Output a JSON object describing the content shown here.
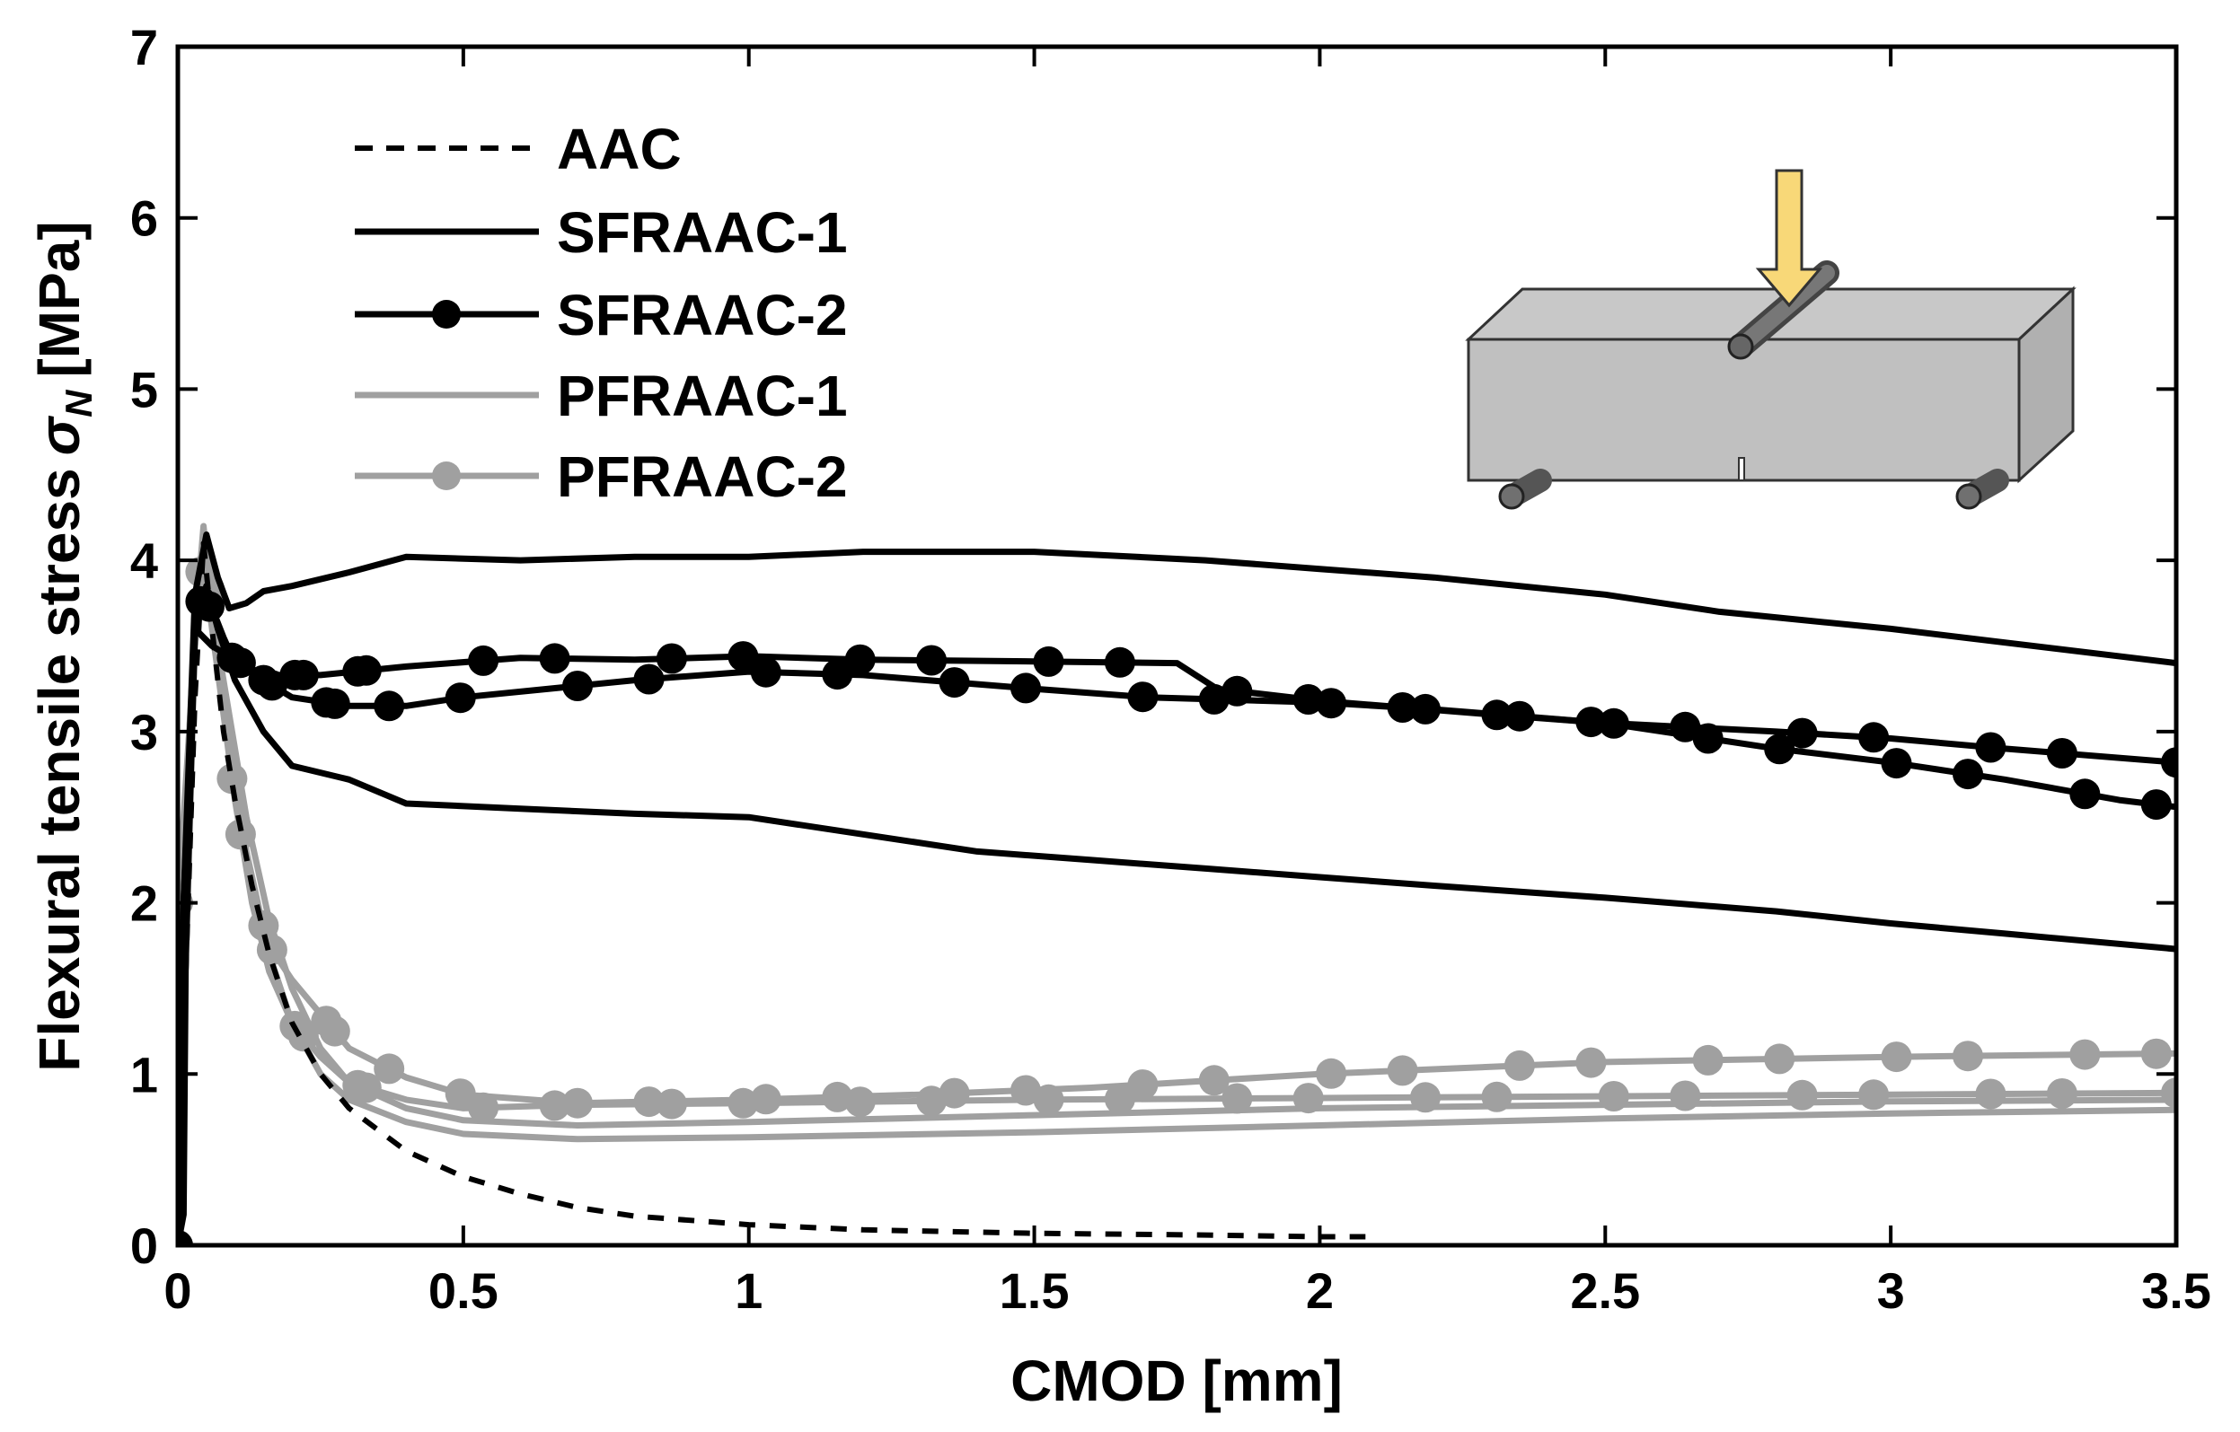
{
  "chart_data": {
    "type": "line",
    "title": "",
    "xlabel": "CMOD [mm]",
    "ylabel": "Flexural tensile stress",
    "ylabel_symbol": "σ",
    "ylabel_subscript": "N",
    "ylabel_unit": "[MPa]",
    "xlim": [
      0,
      3.5
    ],
    "ylim": [
      0,
      7
    ],
    "xticks": [
      "0",
      "0.5",
      "1",
      "1.5",
      "2",
      "2.5",
      "3",
      "3.5"
    ],
    "xtick_values": [
      0,
      0.5,
      1,
      1.5,
      2,
      2.5,
      3,
      3.5
    ],
    "yticks": [
      "0",
      "1",
      "2",
      "3",
      "4",
      "5",
      "6",
      "7"
    ],
    "ytick_values": [
      0,
      1,
      2,
      3,
      4,
      5,
      6,
      7
    ],
    "grid": false,
    "legend_position": "top-left",
    "colors": {
      "black": "#000000",
      "gray": "#a0a0a0",
      "beam": "#c0c0c0",
      "roller": "#707070",
      "arrow": "#f8d878"
    },
    "series": [
      {
        "name": "AAC",
        "color": "#000000",
        "style": "dashed",
        "marker": "none",
        "curves": [
          [
            [
              0,
              0
            ],
            [
              0.01,
              1.2
            ],
            [
              0.03,
              3.2
            ],
            [
              0.045,
              4.1
            ],
            [
              0.06,
              3.6
            ],
            [
              0.08,
              3.0
            ],
            [
              0.1,
              2.6
            ],
            [
              0.13,
              2.1
            ],
            [
              0.16,
              1.7
            ],
            [
              0.2,
              1.3
            ],
            [
              0.25,
              1.0
            ],
            [
              0.3,
              0.8
            ],
            [
              0.4,
              0.55
            ],
            [
              0.5,
              0.4
            ],
            [
              0.6,
              0.3
            ],
            [
              0.7,
              0.22
            ],
            [
              0.8,
              0.17
            ],
            [
              1.0,
              0.12
            ],
            [
              1.2,
              0.09
            ],
            [
              1.5,
              0.07
            ],
            [
              1.8,
              0.06
            ],
            [
              2.0,
              0.05
            ],
            [
              2.08,
              0.05
            ]
          ]
        ]
      },
      {
        "name": "SFRAAC-1",
        "color": "#000000",
        "style": "solid",
        "marker": "none",
        "curves": [
          [
            [
              0,
              0
            ],
            [
              0.01,
              2.0
            ],
            [
              0.03,
              3.8
            ],
            [
              0.05,
              4.15
            ],
            [
              0.07,
              3.9
            ],
            [
              0.09,
              3.72
            ],
            [
              0.12,
              3.75
            ],
            [
              0.15,
              3.82
            ],
            [
              0.2,
              3.85
            ],
            [
              0.3,
              3.93
            ],
            [
              0.4,
              4.02
            ],
            [
              0.6,
              4.0
            ],
            [
              0.8,
              4.02
            ],
            [
              1.0,
              4.02
            ],
            [
              1.2,
              4.05
            ],
            [
              1.5,
              4.05
            ],
            [
              1.8,
              4.0
            ],
            [
              2.0,
              3.95
            ],
            [
              2.2,
              3.9
            ],
            [
              2.5,
              3.8
            ],
            [
              2.7,
              3.7
            ],
            [
              3.0,
              3.6
            ],
            [
              3.2,
              3.52
            ],
            [
              3.5,
              3.4
            ]
          ],
          [
            [
              0,
              0
            ],
            [
              0.01,
              2.0
            ],
            [
              0.03,
              3.6
            ],
            [
              0.05,
              3.85
            ],
            [
              0.07,
              3.6
            ],
            [
              0.1,
              3.3
            ],
            [
              0.15,
              3.0
            ],
            [
              0.2,
              2.8
            ],
            [
              0.3,
              2.72
            ],
            [
              0.4,
              2.58
            ],
            [
              0.6,
              2.55
            ],
            [
              0.8,
              2.52
            ],
            [
              1.0,
              2.5
            ],
            [
              1.2,
              2.4
            ],
            [
              1.4,
              2.3
            ],
            [
              1.6,
              2.25
            ],
            [
              1.8,
              2.2
            ],
            [
              2.0,
              2.15
            ],
            [
              2.2,
              2.1
            ],
            [
              2.5,
              2.03
            ],
            [
              2.8,
              1.95
            ],
            [
              3.0,
              1.88
            ],
            [
              3.2,
              1.82
            ],
            [
              3.5,
              1.73
            ]
          ]
        ]
      },
      {
        "name": "SFRAAC-2",
        "color": "#000000",
        "style": "solid",
        "marker": "circle",
        "curves": [
          [
            [
              0,
              0
            ],
            [
              0.01,
              0.18
            ],
            [
              0.015,
              2.15
            ],
            [
              0.03,
              3.78
            ],
            [
              0.06,
              3.72
            ],
            [
              0.08,
              3.55
            ],
            [
              0.1,
              3.4
            ],
            [
              0.15,
              3.3
            ],
            [
              0.2,
              3.2
            ],
            [
              0.3,
              3.15
            ],
            [
              0.4,
              3.15
            ],
            [
              0.5,
              3.2
            ],
            [
              0.8,
              3.3
            ],
            [
              1.0,
              3.35
            ],
            [
              1.2,
              3.33
            ],
            [
              1.5,
              3.25
            ],
            [
              1.7,
              3.2
            ],
            [
              2.0,
              3.17
            ],
            [
              2.2,
              3.13
            ],
            [
              2.5,
              3.05
            ],
            [
              2.8,
              2.9
            ],
            [
              3.0,
              2.82
            ],
            [
              3.2,
              2.72
            ],
            [
              3.4,
              2.6
            ],
            [
              3.5,
              2.56
            ]
          ],
          [
            [
              0,
              0
            ],
            [
              0.03,
              3.6
            ],
            [
              0.06,
              3.5
            ],
            [
              0.1,
              3.42
            ],
            [
              0.15,
              3.33
            ],
            [
              0.25,
              3.33
            ],
            [
              0.4,
              3.38
            ],
            [
              0.6,
              3.43
            ],
            [
              0.8,
              3.42
            ],
            [
              1.0,
              3.44
            ],
            [
              1.2,
              3.42
            ],
            [
              1.5,
              3.41
            ],
            [
              1.75,
              3.4
            ],
            [
              1.82,
              3.25
            ],
            [
              2.0,
              3.18
            ],
            [
              2.3,
              3.1
            ],
            [
              2.5,
              3.05
            ],
            [
              2.8,
              3.0
            ],
            [
              3.0,
              2.96
            ],
            [
              3.2,
              2.9
            ],
            [
              3.5,
              2.82
            ]
          ]
        ]
      },
      {
        "name": "PFRAAC-1",
        "color": "#a0a0a0",
        "style": "solid",
        "marker": "none",
        "curves": [
          [
            [
              0,
              0
            ],
            [
              0.01,
              1.8
            ],
            [
              0.03,
              3.6
            ],
            [
              0.045,
              4.2
            ],
            [
              0.06,
              3.7
            ],
            [
              0.09,
              3.0
            ],
            [
              0.12,
              2.3
            ],
            [
              0.16,
              1.7
            ],
            [
              0.2,
              1.3
            ],
            [
              0.25,
              1.0
            ],
            [
              0.3,
              0.85
            ],
            [
              0.4,
              0.72
            ],
            [
              0.5,
              0.65
            ],
            [
              0.7,
              0.62
            ],
            [
              1.0,
              0.63
            ],
            [
              1.5,
              0.66
            ],
            [
              2.0,
              0.7
            ],
            [
              2.5,
              0.74
            ],
            [
              3.0,
              0.77
            ],
            [
              3.5,
              0.79
            ]
          ],
          [
            [
              0,
              0
            ],
            [
              0.01,
              1.8
            ],
            [
              0.03,
              3.5
            ],
            [
              0.045,
              4.15
            ],
            [
              0.06,
              3.7
            ],
            [
              0.09,
              3.1
            ],
            [
              0.12,
              2.5
            ],
            [
              0.16,
              1.9
            ],
            [
              0.2,
              1.5
            ],
            [
              0.25,
              1.15
            ],
            [
              0.3,
              0.95
            ],
            [
              0.4,
              0.8
            ],
            [
              0.5,
              0.73
            ],
            [
              0.7,
              0.7
            ],
            [
              1.0,
              0.72
            ],
            [
              1.5,
              0.76
            ],
            [
              2.0,
              0.8
            ],
            [
              2.5,
              0.82
            ],
            [
              3.0,
              0.84
            ],
            [
              3.5,
              0.85
            ]
          ]
        ]
      },
      {
        "name": "PFRAAC-2",
        "color": "#a0a0a0",
        "style": "solid",
        "marker": "circle",
        "curves": [
          [
            [
              0,
              2.0
            ],
            [
              0.01,
              2.4
            ],
            [
              0.03,
              3.6
            ],
            [
              0.045,
              4.1
            ],
            [
              0.06,
              3.7
            ],
            [
              0.08,
              3.2
            ],
            [
              0.1,
              2.7
            ],
            [
              0.13,
              2.1
            ],
            [
              0.16,
              1.75
            ],
            [
              0.2,
              1.55
            ],
            [
              0.25,
              1.35
            ],
            [
              0.3,
              1.15
            ],
            [
              0.4,
              0.98
            ],
            [
              0.5,
              0.88
            ],
            [
              0.7,
              0.83
            ],
            [
              1.0,
              0.85
            ],
            [
              1.3,
              0.88
            ],
            [
              1.6,
              0.92
            ],
            [
              2.0,
              1.0
            ],
            [
              2.5,
              1.07
            ],
            [
              3.0,
              1.1
            ],
            [
              3.5,
              1.12
            ]
          ],
          [
            [
              0,
              2.0
            ],
            [
              0.03,
              3.5
            ],
            [
              0.045,
              4.0
            ],
            [
              0.06,
              3.6
            ],
            [
              0.08,
              3.1
            ],
            [
              0.1,
              2.6
            ],
            [
              0.13,
              2.0
            ],
            [
              0.16,
              1.6
            ],
            [
              0.2,
              1.3
            ],
            [
              0.25,
              1.1
            ],
            [
              0.3,
              0.95
            ],
            [
              0.4,
              0.85
            ],
            [
              0.5,
              0.8
            ],
            [
              0.7,
              0.82
            ],
            [
              1.0,
              0.83
            ],
            [
              1.5,
              0.85
            ],
            [
              2.0,
              0.86
            ],
            [
              2.5,
              0.87
            ],
            [
              3.0,
              0.88
            ],
            [
              3.5,
              0.89
            ]
          ]
        ]
      }
    ]
  }
}
